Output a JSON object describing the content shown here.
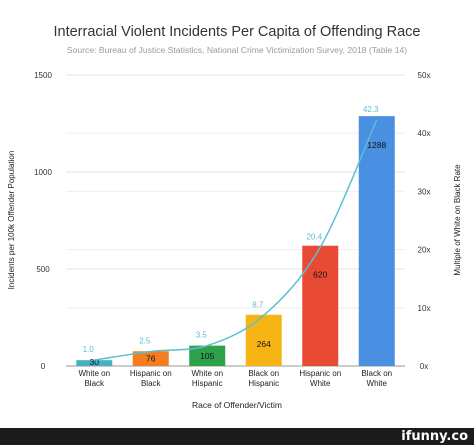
{
  "chart_data": {
    "type": "bar",
    "title": "Interracial Violent Incidents Per Capita of Offending Race",
    "subtitle": "Source: Bureau of Justice Statistics, National Crime Victimization Survey, 2018 (Table 14)",
    "xlabel": "Race of Offender/Victim",
    "ylabel": "Incidents per 100k Offender Population",
    "y2label": "Multiple of White on Black Rate",
    "categories": [
      [
        "White on",
        "Black"
      ],
      [
        "Hispanic on",
        "Black"
      ],
      [
        "White on",
        "Hispanic"
      ],
      [
        "Black on",
        "Hispanic"
      ],
      [
        "Hispanic on",
        "White"
      ],
      [
        "Black on",
        "White"
      ]
    ],
    "series": [
      {
        "axis": "left",
        "kind": "bar",
        "values": [
          30,
          76,
          105,
          264,
          620,
          1288
        ],
        "labels": [
          "30",
          "76",
          "105",
          "264",
          "620",
          "1288"
        ],
        "colors": [
          "#46b0c4",
          "#f47d20",
          "#2ea24b",
          "#f7b515",
          "#e94a33",
          "#4a90e2"
        ]
      },
      {
        "axis": "right",
        "kind": "line",
        "color": "#5bbfd0",
        "values": [
          1.0,
          2.5,
          3.5,
          8.7,
          20.4,
          42.3
        ],
        "labels": [
          "1.0",
          "2.5",
          "3.5",
          "8.7",
          "20.4",
          "42.3"
        ]
      }
    ],
    "ylim": [
      0,
      1500
    ],
    "yticks": [
      "0",
      "500",
      "1000",
      "1500"
    ],
    "y2lim": [
      0,
      50
    ],
    "y2ticks": [
      "0x",
      "10x",
      "20x",
      "30x",
      "40x",
      "50x"
    ],
    "grid": true
  },
  "watermark": "ifunny.co"
}
